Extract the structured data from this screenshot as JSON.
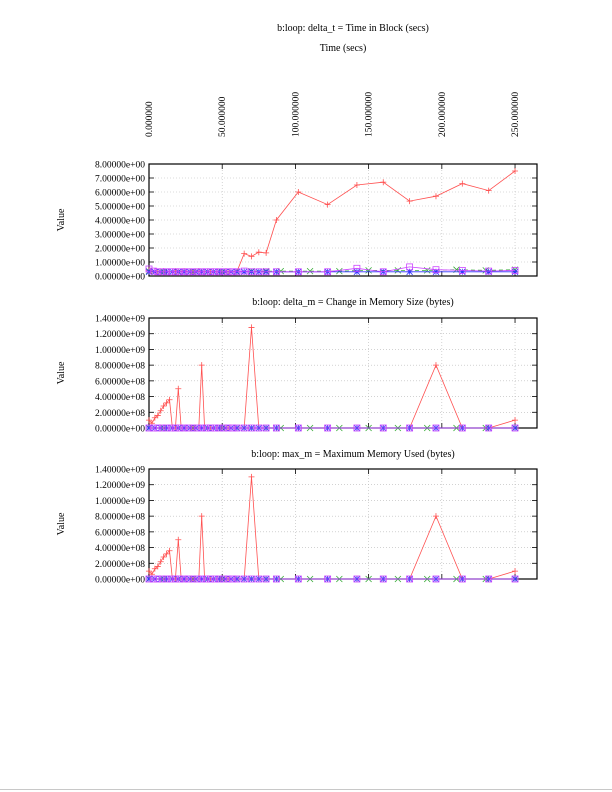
{
  "chart_data": [
    {
      "type": "line",
      "title": "b:loop: delta_t = Time in Block (secs)",
      "xlabel": "Time (secs)",
      "ylabel": "Value",
      "x_tick_labels": [
        "0.000000",
        "50.000000",
        "100.000000",
        "150.000000",
        "200.000000",
        "250.000000"
      ],
      "x_ticks": [
        0,
        50,
        100,
        150,
        200,
        250
      ],
      "xlim": [
        0,
        265
      ],
      "y_tick_labels": [
        "0.00000e+00",
        "1.00000e+00",
        "2.00000e+00",
        "3.00000e+00",
        "4.00000e+00",
        "5.00000e+00",
        "6.00000e+00",
        "7.00000e+00",
        "8.00000e+00"
      ],
      "y_ticks": [
        0,
        1,
        2,
        3,
        4,
        5,
        6,
        7,
        8
      ],
      "ylim": [
        0,
        8
      ],
      "grid": true,
      "series": [
        {
          "color": "#ff5050",
          "marker": "plus",
          "x": [
            0,
            2,
            4,
            6,
            8,
            10,
            12,
            14,
            16,
            18,
            20,
            22,
            24,
            26,
            28,
            30,
            32,
            34,
            36,
            38,
            40,
            42,
            44,
            46,
            48,
            50,
            52,
            54,
            56,
            58,
            60,
            65,
            70,
            75,
            80,
            87,
            102,
            122,
            142,
            160,
            178,
            196,
            214,
            232,
            250
          ],
          "y": [
            0.4,
            0.3,
            0.35,
            0.3,
            0.3,
            0.35,
            0.3,
            0.3,
            0.3,
            0.35,
            0.3,
            0.3,
            0.35,
            0.3,
            0.3,
            0.3,
            0.3,
            0.35,
            0.3,
            0.3,
            0.3,
            0.3,
            0.3,
            0.3,
            0.3,
            0.3,
            0.3,
            0.3,
            0.3,
            0.3,
            0.3,
            1.6,
            1.4,
            1.7,
            1.65,
            4.0,
            6.0,
            5.1,
            6.5,
            6.7,
            5.35,
            5.7,
            6.6,
            6.1,
            7.5
          ]
        },
        {
          "color": "#33aa33",
          "marker": "cross",
          "dashed": true,
          "x": [
            0,
            10,
            20,
            30,
            40,
            50,
            60,
            70,
            80,
            90,
            110,
            130,
            150,
            170,
            190,
            210,
            230,
            250
          ],
          "y": [
            0.35,
            0.3,
            0.3,
            0.3,
            0.3,
            0.3,
            0.3,
            0.35,
            0.35,
            0.35,
            0.35,
            0.35,
            0.4,
            0.4,
            0.4,
            0.45,
            0.4,
            0.45
          ]
        },
        {
          "color": "#3333ff",
          "marker": "asterisk",
          "x": [
            0,
            4,
            8,
            12,
            16,
            20,
            24,
            28,
            32,
            36,
            40,
            44,
            48,
            52,
            56,
            60,
            65,
            70,
            75,
            80,
            87,
            102,
            122,
            142,
            160,
            178,
            196,
            214,
            232,
            250
          ],
          "y": [
            0.3,
            0.3,
            0.3,
            0.3,
            0.3,
            0.3,
            0.3,
            0.3,
            0.3,
            0.3,
            0.3,
            0.3,
            0.3,
            0.3,
            0.3,
            0.3,
            0.3,
            0.3,
            0.3,
            0.3,
            0.3,
            0.3,
            0.3,
            0.3,
            0.3,
            0.3,
            0.3,
            0.3,
            0.3,
            0.3
          ]
        },
        {
          "color": "#cc44ff",
          "marker": "square",
          "x": [
            0,
            3,
            6,
            9,
            12,
            15,
            18,
            21,
            24,
            27,
            30,
            33,
            36,
            39,
            42,
            45,
            48,
            51,
            54,
            57,
            60,
            65,
            70,
            75,
            80,
            87,
            102,
            122,
            142,
            160,
            178,
            196,
            214,
            232,
            250
          ],
          "y": [
            0.5,
            0.35,
            0.3,
            0.3,
            0.3,
            0.3,
            0.3,
            0.3,
            0.3,
            0.3,
            0.3,
            0.3,
            0.3,
            0.3,
            0.3,
            0.3,
            0.3,
            0.3,
            0.3,
            0.3,
            0.3,
            0.35,
            0.3,
            0.3,
            0.3,
            0.3,
            0.3,
            0.3,
            0.55,
            0.3,
            0.65,
            0.45,
            0.4,
            0.35,
            0.4
          ]
        }
      ]
    },
    {
      "type": "line",
      "title": "b:loop: delta_m = Change in Memory Size (bytes)",
      "ylabel": "Value",
      "x_ticks": [
        0,
        50,
        100,
        150,
        200,
        250
      ],
      "xlim": [
        0,
        265
      ],
      "y_tick_labels": [
        "0.00000e+00",
        "2.00000e+08",
        "4.00000e+08",
        "6.00000e+08",
        "8.00000e+08",
        "1.00000e+09",
        "1.20000e+09",
        "1.40000e+09"
      ],
      "y_ticks": [
        0,
        200000000,
        400000000,
        600000000,
        800000000,
        1000000000,
        1200000000,
        1400000000
      ],
      "ylim": [
        0,
        1400000000
      ],
      "grid": true,
      "series": [
        {
          "color": "#ff5050",
          "marker": "plus",
          "x": [
            0,
            2,
            4,
            6,
            8,
            10,
            12,
            14,
            16,
            18,
            20,
            22,
            24,
            26,
            28,
            30,
            32,
            34,
            36,
            38,
            40,
            42,
            44,
            46,
            48,
            50,
            52,
            54,
            56,
            58,
            60,
            65,
            70,
            75,
            80,
            87,
            102,
            122,
            142,
            160,
            178,
            196,
            214,
            232,
            250
          ],
          "y": [
            100000000,
            60000000,
            130000000,
            160000000,
            220000000,
            280000000,
            320000000,
            360000000,
            0,
            0,
            500000000,
            0,
            0,
            0,
            0,
            0,
            0,
            0,
            800000000,
            0,
            0,
            0,
            0,
            0,
            0,
            0,
            0,
            0,
            0,
            0,
            0,
            0,
            1280000000,
            0,
            0,
            0,
            0,
            0,
            0,
            0,
            0,
            800000000,
            0,
            0,
            100000000
          ]
        },
        {
          "color": "#33aa33",
          "marker": "cross",
          "x": [
            0,
            10,
            20,
            30,
            40,
            50,
            60,
            70,
            80,
            90,
            110,
            130,
            150,
            170,
            190,
            210,
            230,
            250
          ],
          "y": [
            0,
            0,
            0,
            0,
            0,
            0,
            0,
            0,
            0,
            0,
            0,
            0,
            0,
            0,
            0,
            0,
            0,
            0
          ]
        },
        {
          "color": "#3333ff",
          "marker": "asterisk",
          "x": [
            0,
            4,
            8,
            12,
            16,
            20,
            24,
            28,
            32,
            36,
            40,
            44,
            48,
            52,
            56,
            60,
            65,
            70,
            75,
            80,
            87,
            102,
            122,
            142,
            160,
            178,
            196,
            214,
            232,
            250
          ],
          "y": [
            0,
            0,
            0,
            0,
            0,
            0,
            0,
            0,
            0,
            0,
            0,
            0,
            0,
            0,
            0,
            0,
            0,
            0,
            0,
            0,
            0,
            0,
            0,
            0,
            0,
            0,
            0,
            0,
            0,
            0
          ]
        },
        {
          "color": "#cc44ff",
          "marker": "square",
          "x": [
            0,
            3,
            6,
            9,
            12,
            15,
            18,
            21,
            24,
            27,
            30,
            33,
            36,
            39,
            42,
            45,
            48,
            51,
            54,
            57,
            60,
            65,
            70,
            75,
            80,
            87,
            102,
            122,
            142,
            160,
            178,
            196,
            214,
            232,
            250
          ],
          "y": [
            0,
            0,
            0,
            0,
            0,
            0,
            0,
            0,
            0,
            0,
            0,
            0,
            0,
            0,
            0,
            0,
            0,
            0,
            0,
            0,
            0,
            0,
            0,
            0,
            0,
            0,
            0,
            0,
            0,
            0,
            0,
            0,
            0,
            0,
            0
          ]
        }
      ]
    },
    {
      "type": "line",
      "title": "b:loop: max_m = Maximum Memory Used (bytes)",
      "ylabel": "Value",
      "x_ticks": [
        0,
        50,
        100,
        150,
        200,
        250
      ],
      "xlim": [
        0,
        265
      ],
      "y_tick_labels": [
        "0.00000e+00",
        "2.00000e+08",
        "4.00000e+08",
        "6.00000e+08",
        "8.00000e+08",
        "1.00000e+09",
        "1.20000e+09",
        "1.40000e+09"
      ],
      "y_ticks": [
        0,
        200000000,
        400000000,
        600000000,
        800000000,
        1000000000,
        1200000000,
        1400000000
      ],
      "ylim": [
        0,
        1400000000
      ],
      "grid": true,
      "series": [
        {
          "color": "#ff5050",
          "marker": "plus",
          "x": [
            0,
            2,
            4,
            6,
            8,
            10,
            12,
            14,
            16,
            18,
            20,
            22,
            24,
            26,
            28,
            30,
            32,
            34,
            36,
            38,
            40,
            42,
            44,
            46,
            48,
            50,
            52,
            54,
            56,
            58,
            60,
            65,
            70,
            75,
            80,
            87,
            102,
            122,
            142,
            160,
            178,
            196,
            214,
            232,
            250
          ],
          "y": [
            100000000,
            60000000,
            130000000,
            160000000,
            220000000,
            280000000,
            320000000,
            360000000,
            0,
            0,
            500000000,
            0,
            0,
            0,
            0,
            0,
            0,
            0,
            800000000,
            0,
            0,
            0,
            0,
            0,
            0,
            0,
            0,
            0,
            0,
            0,
            0,
            0,
            1300000000,
            0,
            0,
            0,
            0,
            0,
            0,
            0,
            0,
            800000000,
            0,
            0,
            100000000
          ]
        },
        {
          "color": "#33aa33",
          "marker": "cross",
          "x": [
            0,
            10,
            20,
            30,
            40,
            50,
            60,
            70,
            80,
            90,
            110,
            130,
            150,
            170,
            190,
            210,
            230,
            250
          ],
          "y": [
            0,
            0,
            0,
            0,
            0,
            0,
            0,
            0,
            0,
            0,
            0,
            0,
            0,
            0,
            0,
            0,
            0,
            0
          ]
        },
        {
          "color": "#3333ff",
          "marker": "asterisk",
          "x": [
            0,
            4,
            8,
            12,
            16,
            20,
            24,
            28,
            32,
            36,
            40,
            44,
            48,
            52,
            56,
            60,
            65,
            70,
            75,
            80,
            87,
            102,
            122,
            142,
            160,
            178,
            196,
            214,
            232,
            250
          ],
          "y": [
            0,
            0,
            0,
            0,
            0,
            0,
            0,
            0,
            0,
            0,
            0,
            0,
            0,
            0,
            0,
            0,
            0,
            0,
            0,
            0,
            0,
            0,
            0,
            0,
            0,
            0,
            0,
            0,
            0,
            0
          ]
        },
        {
          "color": "#cc44ff",
          "marker": "square",
          "x": [
            0,
            3,
            6,
            9,
            12,
            15,
            18,
            21,
            24,
            27,
            30,
            33,
            36,
            39,
            42,
            45,
            48,
            51,
            54,
            57,
            60,
            65,
            70,
            75,
            80,
            87,
            102,
            122,
            142,
            160,
            178,
            196,
            214,
            232,
            250
          ],
          "y": [
            0,
            0,
            0,
            0,
            0,
            0,
            0,
            0,
            0,
            0,
            0,
            0,
            0,
            0,
            0,
            0,
            0,
            0,
            0,
            0,
            0,
            0,
            0,
            0,
            0,
            0,
            0,
            0,
            0,
            0,
            0,
            0,
            0,
            0,
            0
          ]
        }
      ]
    }
  ]
}
